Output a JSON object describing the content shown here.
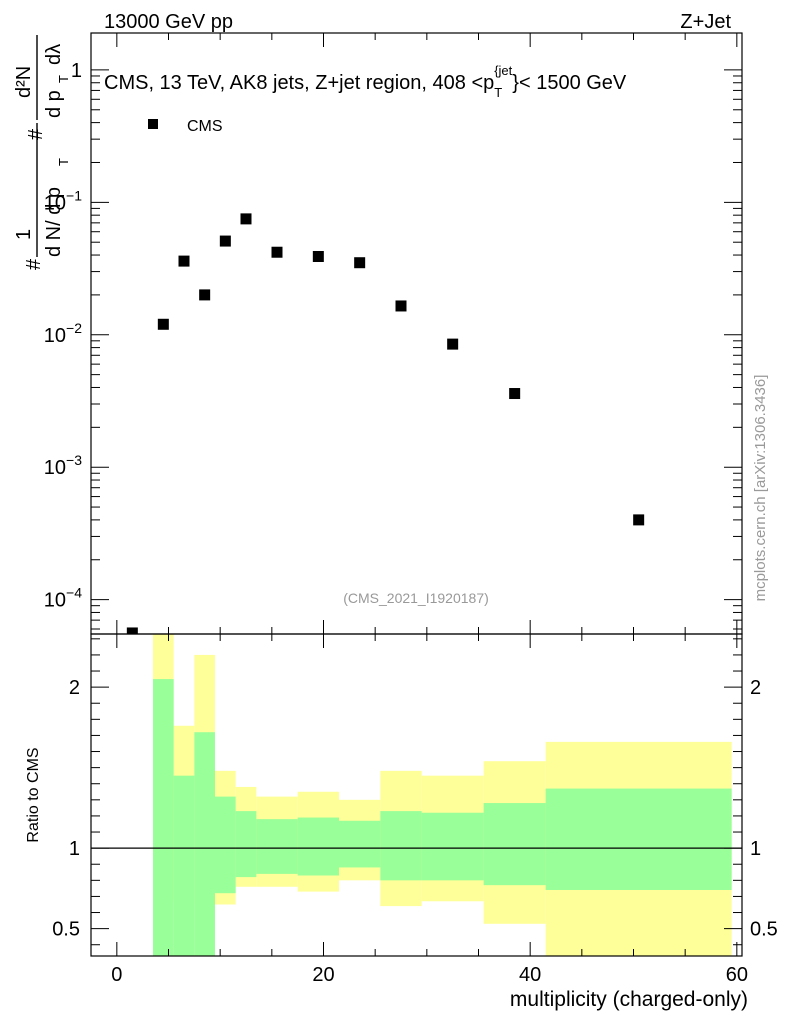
{
  "header": {
    "energy_label": "13000 GeV pp",
    "process_label": "Z+Jet"
  },
  "watermark": "mcplots.cern.ch [arXiv:1306.3436]",
  "analysis_id": "(CMS_2021_I1920187)",
  "chart_data": {
    "type": "scatter",
    "title": "CMS, 13 TeV, AK8 jets, Z+jet region, 408 <p_T^{jet}< 1500 GeV",
    "title_parts": {
      "prefix": "CMS, 13 TeV, AK8 jets, Z+jet region, 408 <p",
      "sub": "T",
      "sup": "{jet",
      "suffix": "}< 1500 GeV"
    },
    "xlabel": "multiplicity (charged-only)",
    "ylabel_main": {
      "hash1": "#",
      "one": "1",
      "dN": "d N/ d p",
      "T1": "T",
      "hash2": "#",
      "num": "d²N",
      "den": "d p",
      "T2": "T",
      "dl": "dλ"
    },
    "ylabel_ratio": "Ratio to CMS",
    "legend": [
      {
        "name": "CMS",
        "marker": "square",
        "color": "#000000"
      }
    ],
    "xlim": [
      -2.5,
      60.5
    ],
    "ylim_main": [
      5.5e-05,
      1.9
    ],
    "yscale_main": "log",
    "ylim_ratio": [
      0.33,
      2.33
    ],
    "x_ticks": [
      "0",
      "20",
      "40",
      "60"
    ],
    "y_ticks_main": [
      {
        "value": 1,
        "mant": "1",
        "exp": ""
      },
      {
        "value": 0.1,
        "mant": "10",
        "exp": "−1"
      },
      {
        "value": 0.01,
        "mant": "10",
        "exp": "−2"
      },
      {
        "value": 0.001,
        "mant": "10",
        "exp": "−3"
      },
      {
        "value": 0.0001,
        "mant": "10",
        "exp": "−4"
      }
    ],
    "y_ticks_ratio": [
      "0.5",
      "1",
      "2"
    ],
    "series": [
      {
        "name": "CMS",
        "x": [
          1.5,
          4.5,
          6.5,
          8.5,
          10.5,
          12.5,
          15.5,
          19.5,
          23.5,
          27.5,
          32.5,
          38.5,
          50.5
        ],
        "y": [
          5.6e-05,
          0.012,
          0.036,
          0.02,
          0.051,
          0.075,
          0.042,
          0.039,
          0.035,
          0.0165,
          0.0085,
          0.0036,
          0.0004
        ]
      }
    ],
    "ratio_bands": {
      "bin_edges": [
        3.5,
        5.5,
        7.5,
        9.5,
        11.5,
        13.5,
        17.5,
        21.5,
        25.5,
        29.5,
        35.5,
        41.5,
        59.5
      ],
      "inner": {
        "color": "#99ff99",
        "upper": [
          2.05,
          1.45,
          1.72,
          1.32,
          1.23,
          1.18,
          1.19,
          1.17,
          1.23,
          1.22,
          1.28,
          1.37
        ],
        "lower": [
          0.0,
          0.0,
          0.0,
          0.72,
          0.82,
          0.84,
          0.83,
          0.88,
          0.8,
          0.8,
          0.77,
          0.74
        ]
      },
      "outer": {
        "color": "#ffff99",
        "upper": [
          2.5,
          1.76,
          2.2,
          1.48,
          1.38,
          1.32,
          1.35,
          1.3,
          1.48,
          1.45,
          1.54,
          1.66
        ],
        "lower": [
          0.0,
          0.67,
          0.0,
          0.65,
          0.76,
          0.76,
          0.73,
          0.8,
          0.64,
          0.67,
          0.53,
          0.0
        ]
      },
      "reference": 1
    }
  }
}
